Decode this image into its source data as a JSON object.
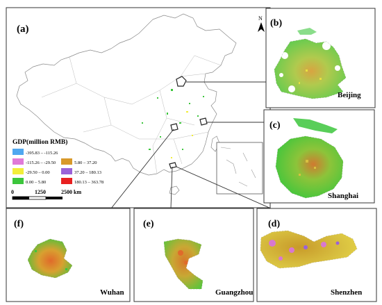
{
  "main_panel": {
    "label": "(a)"
  },
  "north_arrow": {
    "label": "N"
  },
  "legend": {
    "title": "GDP(million RMB)",
    "items": [
      {
        "range": "-395.83 – -115.26",
        "color": "#4fa7f0"
      },
      {
        "range": "-115.26 – -29.50",
        "color": "#e07ad8"
      },
      {
        "range": "-29.50 – 0.00",
        "color": "#f2ee3a"
      },
      {
        "range": "0.00 – 5.80",
        "color": "#3cc63c"
      },
      {
        "range": "5.80 – 37.20",
        "color": "#d8992a"
      },
      {
        "range": "37.20 – 180.13",
        "color": "#9a62d8"
      },
      {
        "range": "180.13 – 363.78",
        "color": "#e82020"
      }
    ]
  },
  "scalebar": {
    "ticks": [
      "0",
      "1250",
      "2500 km"
    ]
  },
  "insets": [
    {
      "label": "(b)",
      "city": "Beijing"
    },
    {
      "label": "(c)",
      "city": "Shanghai"
    },
    {
      "label": "(d)",
      "city": "Shenzhen"
    },
    {
      "label": "(e)",
      "city": "Guangzhou"
    },
    {
      "label": "(f)",
      "city": "Wuhan"
    }
  ]
}
